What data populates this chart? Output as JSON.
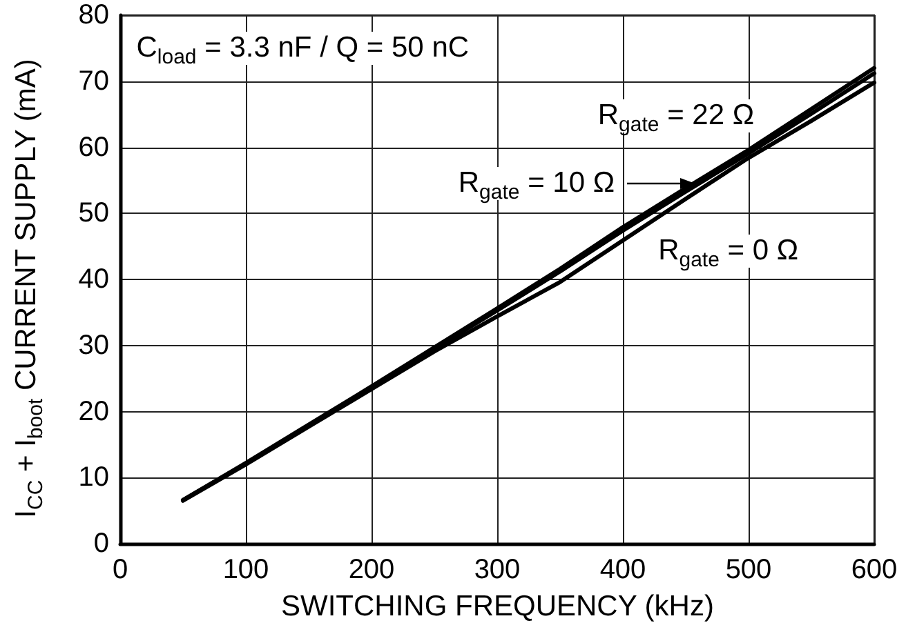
{
  "chart_data": {
    "type": "line",
    "xlabel": "SWITCHING FREQUENCY (kHz)",
    "ylabel": "I$_{CC}$ + I$_{boot}$ CURRENT SUPPLY (mA)",
    "annotations": [
      "C$_{load}$ = 3.3 nF / Q = 50 nC"
    ],
    "x": [
      50,
      100,
      150,
      200,
      250,
      300,
      350,
      400,
      450,
      500,
      550,
      600
    ],
    "series": [
      {
        "name": "R$_{gate}$ = 22 Ω",
        "color": "#000000",
        "values": [
          6.6,
          12.2,
          18.0,
          23.8,
          29.7,
          35.6,
          41.6,
          47.9,
          53.8,
          59.6,
          65.8,
          72.0
        ]
      },
      {
        "name": "R$_{gate}$ = 10 Ω",
        "color": "#000000",
        "values": [
          6.6,
          12.1,
          17.9,
          23.6,
          29.5,
          35.3,
          41.2,
          47.4,
          53.3,
          59.1,
          65.1,
          71.2
        ]
      },
      {
        "name": "R$_{gate}$ = 0 Ω",
        "color": "#000000",
        "values": [
          6.5,
          12.0,
          17.7,
          23.4,
          29.1,
          34.4,
          39.6,
          45.9,
          52.2,
          58.4,
          64.0,
          69.8
        ]
      }
    ],
    "xlim": [
      0,
      600
    ],
    "xticks": [
      0,
      100,
      200,
      300,
      400,
      500,
      600
    ],
    "ylim": [
      0,
      80
    ],
    "yticks": [
      0,
      10,
      20,
      30,
      40,
      50,
      60,
      70,
      80
    ],
    "grid": true,
    "marker": "none",
    "line_style": "solid"
  }
}
